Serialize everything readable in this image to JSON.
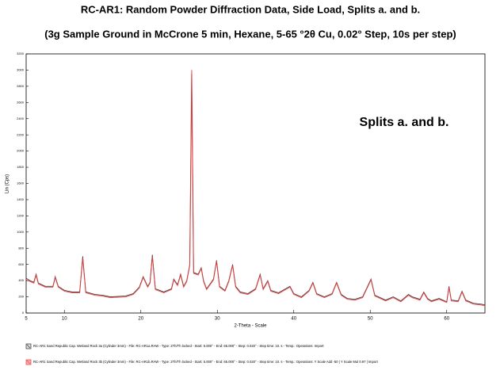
{
  "chart_data": {
    "type": "line",
    "title": "RC-AR1:   Random Powder Diffraction Data, Side Load, Splits a. and b.",
    "subtitle": "(3g Sample Ground in McCrone 5 min, Hexane, 5-65 °2θ Cu, 0.02° Step, 10s per step)",
    "annotation": "Splits a. and b.",
    "x_label": "2-Theta - Scale",
    "y_label": "Lin (Cps)",
    "xlim": [
      5,
      65
    ],
    "xticks": [
      5,
      10,
      20,
      30,
      40,
      50,
      60
    ],
    "ylim": [
      0,
      3200
    ],
    "yticks": [
      0,
      200,
      400,
      600,
      800,
      1000,
      1200,
      1400,
      1600,
      1800,
      2000,
      2200,
      2400,
      2600,
      2800,
      3000,
      3200
    ],
    "x": [
      5.0,
      5.5,
      6.0,
      6.3,
      6.6,
      7.5,
      8.5,
      8.8,
      9.2,
      10.0,
      11.0,
      12.0,
      12.4,
      12.8,
      14.0,
      15.0,
      16.0,
      18.0,
      19.0,
      19.8,
      20.3,
      20.9,
      21.2,
      21.5,
      21.9,
      23.0,
      24.0,
      24.3,
      24.8,
      25.2,
      25.6,
      26.0,
      26.4,
      26.65,
      26.9,
      27.5,
      27.9,
      28.2,
      28.6,
      29.5,
      29.9,
      30.3,
      31.0,
      31.5,
      32.0,
      32.4,
      33.0,
      34.0,
      35.0,
      35.6,
      36.0,
      36.6,
      37.0,
      38.0,
      39.5,
      40.0,
      41.0,
      42.0,
      42.5,
      43.0,
      44.0,
      45.0,
      45.6,
      46.2,
      47.0,
      48.0,
      49.0,
      50.1,
      50.6,
      52.0,
      53.0,
      54.0,
      55.0,
      55.5,
      56.5,
      57.0,
      57.5,
      58.0,
      59.0,
      60.0,
      60.3,
      60.6,
      61.5,
      62.0,
      62.5,
      63.5,
      64.5,
      65.0
    ],
    "series": [
      {
        "name": "RC-AR1 Sand Republic Cap. Wetland Rock 3a (Cylinder 3mm) - File: RC-AR1a.RAW - Type: 2Th/Th locked - Start: 5.000° - End: 65.000° - Step: 0.020° - Step time: 10. s - Temp.: Operations: Import",
        "color": "#333333",
        "values": [
          430,
          400,
          380,
          480,
          370,
          330,
          330,
          450,
          330,
          280,
          260,
          260,
          700,
          260,
          230,
          220,
          200,
          210,
          240,
          320,
          450,
          330,
          380,
          720,
          300,
          260,
          300,
          420,
          350,
          480,
          330,
          400,
          600,
          2950,
          500,
          480,
          560,
          400,
          300,
          420,
          650,
          330,
          280,
          400,
          600,
          330,
          260,
          240,
          300,
          480,
          300,
          400,
          280,
          250,
          330,
          240,
          200,
          280,
          380,
          240,
          200,
          240,
          380,
          230,
          180,
          170,
          200,
          420,
          220,
          160,
          200,
          150,
          230,
          200,
          170,
          260,
          180,
          150,
          180,
          140,
          330,
          160,
          150,
          270,
          160,
          120,
          110,
          100
        ]
      },
      {
        "name": "RC-AR1 Sand Republic Cap. Wetland Rock 3b (Cylinder 3mm) - File: RC-AR1b.RAW - Type: 2Th/Th locked - Start: 5.000° - End: 65.000° - Step: 0.020° - Step time: 10. s - Temp.: Operations: Y Scale Add -50 | Y Scale Mul 0.97 | Import",
        "color": "#e83a3a",
        "values": [
          410,
          390,
          370,
          470,
          360,
          320,
          320,
          440,
          320,
          270,
          250,
          250,
          680,
          250,
          220,
          210,
          190,
          200,
          230,
          310,
          440,
          320,
          370,
          700,
          290,
          250,
          290,
          410,
          340,
          470,
          320,
          390,
          590,
          3000,
          490,
          470,
          550,
          390,
          290,
          410,
          640,
          320,
          270,
          390,
          590,
          320,
          250,
          230,
          290,
          470,
          290,
          390,
          270,
          240,
          320,
          230,
          190,
          270,
          370,
          230,
          190,
          230,
          370,
          220,
          170,
          160,
          190,
          410,
          210,
          150,
          190,
          140,
          220,
          190,
          160,
          250,
          170,
          140,
          170,
          130,
          320,
          150,
          140,
          260,
          150,
          110,
          100,
          90
        ]
      }
    ]
  }
}
